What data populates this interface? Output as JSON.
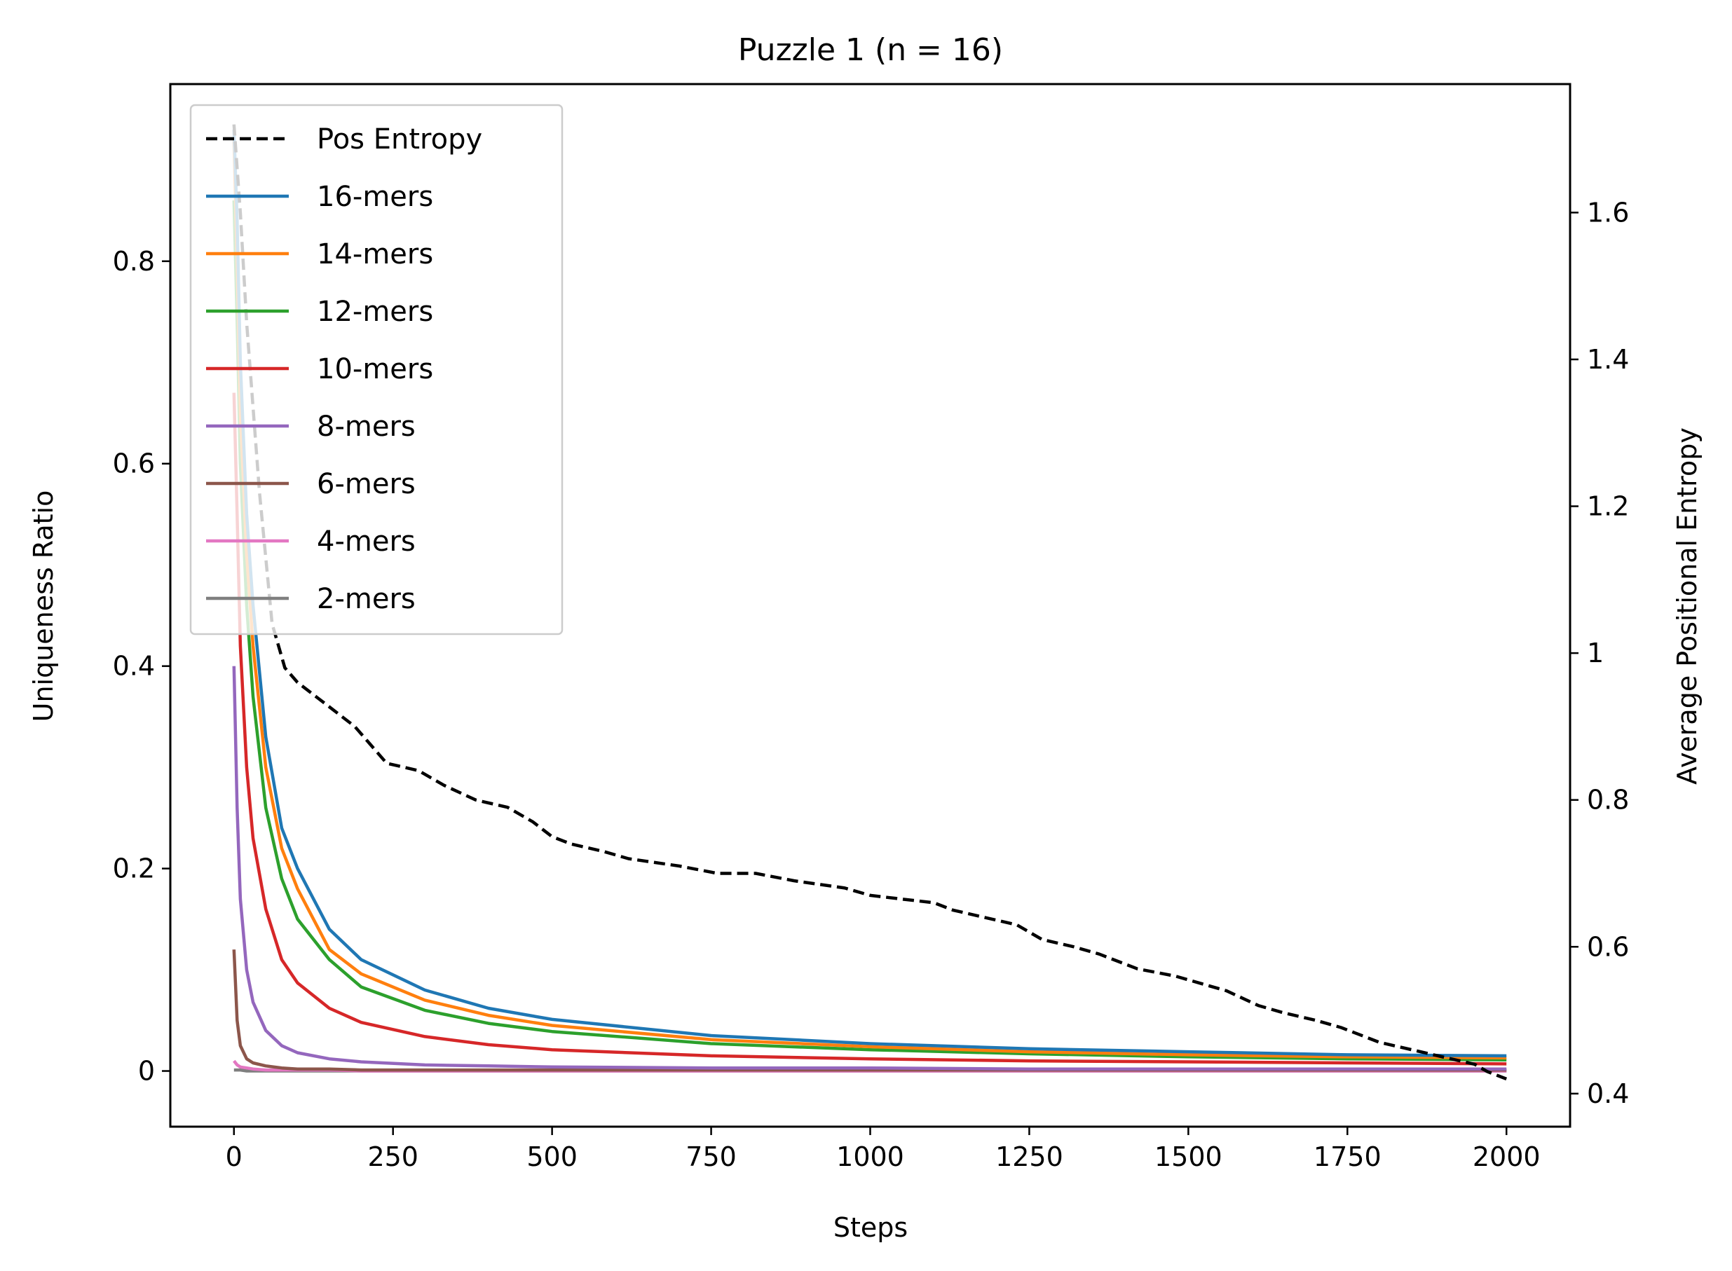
{
  "chart_data": {
    "type": "line",
    "title": "Puzzle 1 (n = 16)",
    "xlabel": "Steps",
    "ylabel": "Uniqueness Ratio",
    "ylabel_right": "Average Positional Entropy",
    "xlim": [
      -100,
      2100
    ],
    "ylim": [
      -0.055,
      0.975
    ],
    "ylim_right": [
      0.355,
      1.775
    ],
    "xticks": [
      0,
      250,
      500,
      750,
      1000,
      1250,
      1500,
      1750,
      2000
    ],
    "yticks": [
      0.0,
      0.2,
      0.4,
      0.6,
      0.8
    ],
    "yticks_right": [
      0.4,
      0.6,
      0.8,
      1.0,
      1.2,
      1.4,
      1.6
    ],
    "grid": false,
    "legend_position": "upper-left",
    "x": [
      0,
      5,
      10,
      20,
      30,
      50,
      75,
      100,
      150,
      200,
      300,
      400,
      500,
      750,
      1000,
      1250,
      1500,
      1750,
      2000
    ],
    "series": [
      {
        "name": "16-mers",
        "color": "#1f77b4",
        "axis": "left",
        "values": [
          0.93,
          0.84,
          0.7,
          0.55,
          0.46,
          0.33,
          0.24,
          0.2,
          0.14,
          0.11,
          0.08,
          0.062,
          0.051,
          0.035,
          0.027,
          0.022,
          0.019,
          0.016,
          0.015
        ]
      },
      {
        "name": "14-mers",
        "color": "#ff7f0e",
        "axis": "left",
        "values": [
          0.92,
          0.8,
          0.65,
          0.51,
          0.42,
          0.3,
          0.22,
          0.18,
          0.12,
          0.096,
          0.07,
          0.055,
          0.045,
          0.031,
          0.024,
          0.019,
          0.016,
          0.014,
          0.013
        ]
      },
      {
        "name": "12-mers",
        "color": "#2ca02c",
        "axis": "left",
        "values": [
          0.86,
          0.74,
          0.6,
          0.46,
          0.37,
          0.26,
          0.19,
          0.15,
          0.11,
          0.083,
          0.06,
          0.047,
          0.039,
          0.027,
          0.021,
          0.017,
          0.014,
          0.012,
          0.011
        ]
      },
      {
        "name": "10-mers",
        "color": "#d62728",
        "axis": "left",
        "values": [
          0.67,
          0.55,
          0.42,
          0.3,
          0.23,
          0.16,
          0.11,
          0.087,
          0.062,
          0.048,
          0.034,
          0.026,
          0.021,
          0.015,
          0.012,
          0.01,
          0.009,
          0.008,
          0.007
        ]
      },
      {
        "name": "8-mers",
        "color": "#9467bd",
        "axis": "left",
        "values": [
          0.4,
          0.26,
          0.17,
          0.1,
          0.068,
          0.04,
          0.025,
          0.018,
          0.012,
          0.009,
          0.006,
          0.005,
          0.004,
          0.003,
          0.003,
          0.002,
          0.002,
          0.002,
          0.002
        ]
      },
      {
        "name": "6-mers",
        "color": "#8c564b",
        "axis": "left",
        "values": [
          0.12,
          0.05,
          0.025,
          0.012,
          0.008,
          0.005,
          0.003,
          0.002,
          0.002,
          0.001,
          0.001,
          0.001,
          0.001,
          0.001,
          0.001,
          0.001,
          0.001,
          0.001,
          0.001
        ]
      },
      {
        "name": "4-mers",
        "color": "#e377c2",
        "axis": "left",
        "values": [
          0.01,
          0.006,
          0.004,
          0.003,
          0.002,
          0.001,
          0.001,
          0.001,
          0.001,
          0.0,
          0.0,
          0.0,
          0.0,
          0.0,
          0.0,
          0.0,
          0.0,
          0.0,
          0.0
        ]
      },
      {
        "name": "2-mers",
        "color": "#7f7f7f",
        "axis": "left",
        "values": [
          0.001,
          0.001,
          0.001,
          0.0,
          0.0,
          0.0,
          0.0,
          0.0,
          0.0,
          0.0,
          0.0,
          0.0,
          0.0,
          0.0,
          0.0,
          0.0,
          0.0,
          0.0,
          0.0
        ]
      }
    ],
    "entropy_series": {
      "name": "Pos Entropy",
      "color": "#000000",
      "axis": "right",
      "style": "dashed",
      "x": [
        0,
        10,
        20,
        40,
        60,
        80,
        100,
        130,
        160,
        190,
        210,
        240,
        290,
        330,
        380,
        430,
        470,
        500,
        530,
        580,
        620,
        700,
        760,
        820,
        880,
        960,
        1000,
        1050,
        1100,
        1130,
        1180,
        1230,
        1270,
        1320,
        1360,
        1420,
        1480,
        1520,
        1560,
        1610,
        1650,
        1700,
        1740,
        1800,
        1850,
        1900,
        1950,
        1970,
        2000
      ],
      "values": [
        1.72,
        1.6,
        1.45,
        1.22,
        1.04,
        0.98,
        0.96,
        0.94,
        0.92,
        0.9,
        0.88,
        0.85,
        0.84,
        0.82,
        0.8,
        0.79,
        0.77,
        0.75,
        0.74,
        0.73,
        0.72,
        0.71,
        0.7,
        0.7,
        0.69,
        0.68,
        0.67,
        0.665,
        0.66,
        0.65,
        0.64,
        0.63,
        0.61,
        0.6,
        0.59,
        0.57,
        0.56,
        0.55,
        0.54,
        0.52,
        0.51,
        0.5,
        0.49,
        0.47,
        0.46,
        0.45,
        0.44,
        0.43,
        0.42
      ]
    }
  }
}
